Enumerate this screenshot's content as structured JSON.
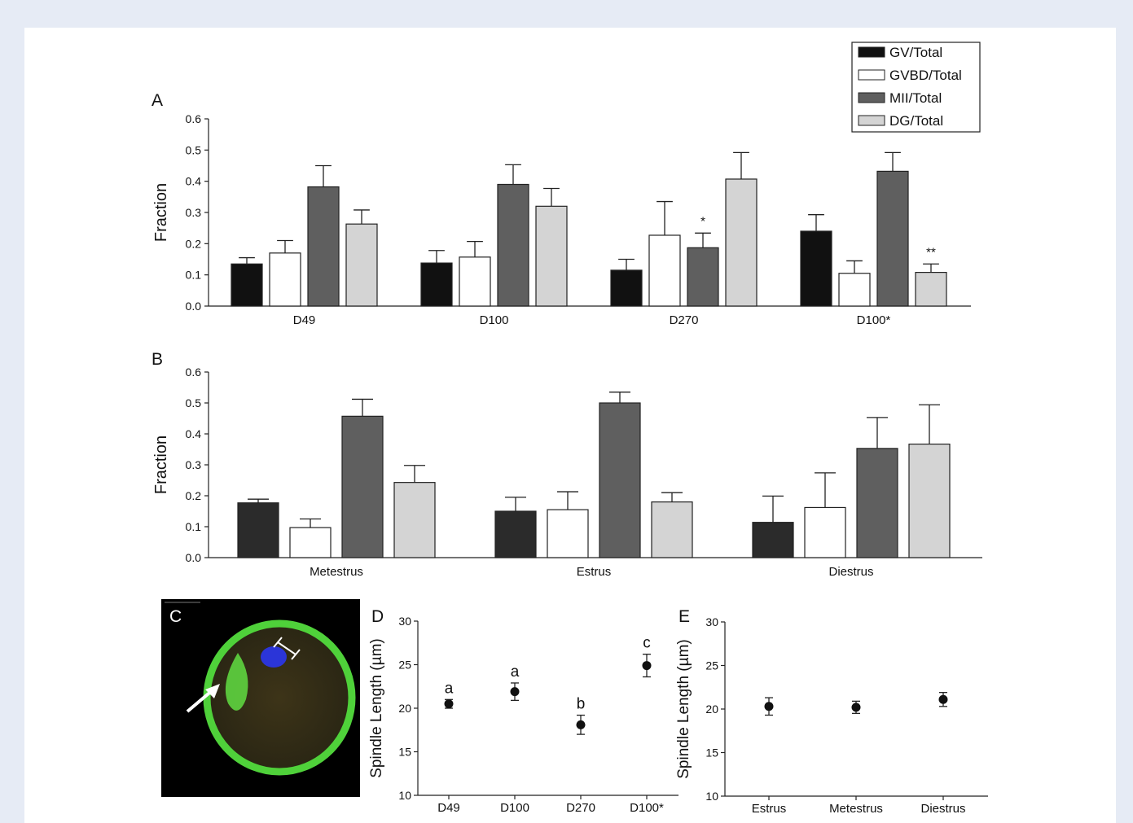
{
  "colors": {
    "page_bg": "#e6ebf5",
    "panel_bg": "#ffffff",
    "gv": "#111111",
    "gvbd": "#ffffff",
    "mii": "#5f5f5f",
    "dg": "#d4d4d4",
    "gv_b": "#2b2b2b",
    "micro_bg": "#000000",
    "micro_membrane": "#4fd13a",
    "micro_nucleus": "#2b35d8"
  },
  "legend": [
    "GV/Total",
    "GVBD/Total",
    "MII/Total",
    "DG/Total"
  ],
  "chart_data": [
    {
      "panel": "A",
      "type": "bar",
      "ylabel": "Fraction",
      "ylim": [
        0,
        0.6
      ],
      "yticks": [
        "0.0",
        "0.1",
        "0.2",
        "0.3",
        "0.4",
        "0.5",
        "0.6"
      ],
      "categories": [
        "D49",
        "D100",
        "D270",
        "D100*"
      ],
      "series": [
        {
          "name": "GV/Total",
          "values": [
            0.135,
            0.138,
            0.115,
            0.24
          ],
          "errors": [
            0.02,
            0.04,
            0.035,
            0.053
          ]
        },
        {
          "name": "GVBD/Total",
          "values": [
            0.17,
            0.157,
            0.227,
            0.105
          ],
          "errors": [
            0.04,
            0.05,
            0.108,
            0.04
          ]
        },
        {
          "name": "MII/Total",
          "values": [
            0.382,
            0.39,
            0.187,
            0.432
          ],
          "errors": [
            0.068,
            0.063,
            0.047,
            0.06
          ]
        },
        {
          "name": "DG/Total",
          "values": [
            0.263,
            0.32,
            0.407,
            0.108
          ],
          "errors": [
            0.045,
            0.057,
            0.085,
            0.027
          ]
        }
      ],
      "annotations": [
        {
          "category": "D270",
          "series": "MII/Total",
          "text": "*"
        },
        {
          "category": "D100*",
          "series": "DG/Total",
          "text": "**"
        }
      ]
    },
    {
      "panel": "B",
      "type": "bar",
      "ylabel": "Fraction",
      "ylim": [
        0,
        0.6
      ],
      "yticks": [
        "0.0",
        "0.1",
        "0.2",
        "0.3",
        "0.4",
        "0.5",
        "0.6"
      ],
      "categories": [
        "Metestrus",
        "Estrus",
        "Diestrus"
      ],
      "series": [
        {
          "name": "GV/Total",
          "values": [
            0.177,
            0.15,
            0.114
          ],
          "errors": [
            0.012,
            0.045,
            0.085
          ]
        },
        {
          "name": "GVBD/Total",
          "values": [
            0.097,
            0.155,
            0.162
          ],
          "errors": [
            0.028,
            0.058,
            0.112
          ]
        },
        {
          "name": "MII/Total",
          "values": [
            0.457,
            0.5,
            0.353
          ],
          "errors": [
            0.055,
            0.035,
            0.1
          ]
        },
        {
          "name": "DG/Total",
          "values": [
            0.243,
            0.18,
            0.367
          ],
          "errors": [
            0.055,
            0.03,
            0.127
          ]
        }
      ]
    },
    {
      "panel": "D",
      "type": "scatter",
      "ylabel": "Spindle Length (µm)",
      "ylim": [
        10,
        30
      ],
      "yticks": [
        "10",
        "15",
        "20",
        "25",
        "30"
      ],
      "categories": [
        "D49",
        "D100",
        "D270",
        "D100*"
      ],
      "values": [
        20.5,
        21.9,
        18.1,
        24.9
      ],
      "errors": [
        0.5,
        1.0,
        1.1,
        1.3
      ],
      "labels": [
        "a",
        "a",
        "b",
        "c"
      ]
    },
    {
      "panel": "E",
      "type": "scatter",
      "ylabel": "Spindle Length (µm)",
      "ylim": [
        10,
        30
      ],
      "yticks": [
        "10",
        "15",
        "20",
        "25",
        "30"
      ],
      "categories": [
        "Estrus",
        "Metestrus",
        "Diestrus"
      ],
      "values": [
        20.3,
        20.2,
        21.1
      ],
      "errors": [
        1.0,
        0.7,
        0.8
      ],
      "labels": [
        "",
        "",
        ""
      ]
    }
  ],
  "panel_c": {
    "letter": "C"
  }
}
